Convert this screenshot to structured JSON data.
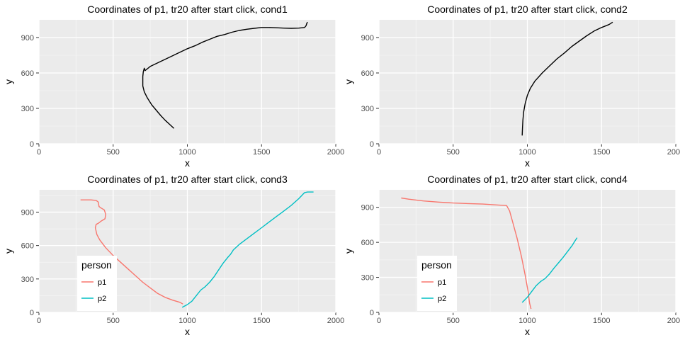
{
  "chart_data": [
    {
      "type": "line",
      "title": "Coordinates of p1, tr20 after start click, cond1",
      "xlabel": "x",
      "ylabel": "y",
      "xlim": [
        0,
        2000
      ],
      "ylim": [
        0,
        1050
      ],
      "xticks": [
        0,
        500,
        1000,
        1500,
        2000
      ],
      "yticks": [
        0,
        300,
        600,
        900
      ],
      "grid": true,
      "legend": null,
      "series": [
        {
          "color": "#000000",
          "x": [
            910,
            880,
            850,
            820,
            790,
            760,
            730,
            710,
            700,
            700,
            700,
            703,
            710,
            715,
            725,
            750,
            800,
            850,
            900,
            950,
            1000,
            1050,
            1100,
            1150,
            1200,
            1250,
            1300,
            1350,
            1400,
            1450,
            1500,
            1550,
            1600,
            1650,
            1700,
            1750,
            1790,
            1800,
            1805,
            1810
          ],
          "y": [
            130,
            165,
            200,
            240,
            285,
            330,
            390,
            440,
            490,
            530,
            570,
            610,
            640,
            620,
            630,
            655,
            685,
            715,
            745,
            775,
            805,
            830,
            860,
            885,
            910,
            925,
            945,
            960,
            970,
            978,
            985,
            985,
            983,
            980,
            978,
            980,
            985,
            1000,
            1020,
            1030
          ]
        }
      ]
    },
    {
      "type": "line",
      "title": "Coordinates of p1, tr20 after start click, cond2",
      "xlabel": "x",
      "ylabel": "y",
      "xlim": [
        0,
        2000
      ],
      "ylim": [
        0,
        1050
      ],
      "xticks": [
        0,
        500,
        1000,
        1500,
        2000
      ],
      "yticks": [
        0,
        300,
        600,
        900
      ],
      "grid": true,
      "legend": null,
      "series": [
        {
          "color": "#000000",
          "x": [
            965,
            967,
            970,
            975,
            985,
            1000,
            1020,
            1050,
            1100,
            1150,
            1200,
            1250,
            1300,
            1350,
            1400,
            1450,
            1500,
            1550,
            1575
          ],
          "y": [
            70,
            130,
            200,
            270,
            340,
            410,
            470,
            530,
            600,
            660,
            720,
            770,
            825,
            870,
            915,
            955,
            985,
            1010,
            1030
          ]
        }
      ]
    },
    {
      "type": "line",
      "title": "Coordinates of p1, tr20 after start click, cond3",
      "xlabel": "x",
      "ylabel": "y",
      "xlim": [
        0,
        2000
      ],
      "ylim": [
        0,
        1100
      ],
      "xticks": [
        0,
        500,
        1000,
        1500,
        2000
      ],
      "yticks": [
        0,
        300,
        600,
        900
      ],
      "grid": true,
      "legend": {
        "title": "person",
        "position": "bottom-left",
        "entries": [
          "p1",
          "p2"
        ]
      },
      "series": [
        {
          "name": "p1",
          "color": "#F8766D",
          "x": [
            280,
            350,
            385,
            400,
            405,
            415,
            440,
            450,
            445,
            420,
            400,
            385,
            380,
            390,
            410,
            450,
            500,
            550,
            600,
            650,
            700,
            750,
            800,
            850,
            900,
            950,
            970
          ],
          "y": [
            1010,
            1010,
            1005,
            990,
            950,
            940,
            920,
            880,
            840,
            820,
            800,
            790,
            760,
            700,
            650,
            580,
            510,
            450,
            390,
            330,
            270,
            220,
            170,
            135,
            110,
            90,
            75
          ]
        },
        {
          "name": "p2",
          "color": "#00BFC4",
          "x": [
            965,
            1000,
            1030,
            1060,
            1090,
            1120,
            1150,
            1180,
            1210,
            1240,
            1270,
            1290,
            1300,
            1310,
            1350,
            1400,
            1450,
            1500,
            1550,
            1600,
            1650,
            1700,
            1750,
            1790,
            1810,
            1850
          ],
          "y": [
            45,
            70,
            100,
            150,
            200,
            230,
            270,
            320,
            380,
            440,
            490,
            520,
            540,
            560,
            610,
            660,
            710,
            760,
            810,
            860,
            910,
            960,
            1020,
            1075,
            1080,
            1080
          ]
        }
      ]
    },
    {
      "type": "line",
      "title": "Coordinates of p1, tr20 after start click, cond4",
      "xlabel": "x",
      "ylabel": "y",
      "xlim": [
        0,
        2000
      ],
      "ylim": [
        0,
        1050
      ],
      "xticks": [
        0,
        500,
        1000,
        1500,
        2000
      ],
      "yticks": [
        0,
        300,
        600,
        900
      ],
      "grid": true,
      "legend": {
        "title": "person",
        "position": "bottom-left",
        "entries": [
          "p1",
          "p2"
        ]
      },
      "series": [
        {
          "name": "p1",
          "color": "#F8766D",
          "x": [
            150,
            200,
            300,
            400,
            500,
            600,
            700,
            800,
            860,
            880,
            900,
            930,
            960,
            985,
            1005,
            1015,
            1025
          ],
          "y": [
            980,
            970,
            955,
            945,
            937,
            932,
            928,
            920,
            915,
            870,
            780,
            640,
            480,
            320,
            180,
            80,
            30
          ]
        },
        {
          "name": "p2",
          "color": "#00BFC4",
          "x": [
            965,
            1000,
            1030,
            1060,
            1090,
            1120,
            1150,
            1180,
            1210,
            1240,
            1270,
            1300,
            1320,
            1335
          ],
          "y": [
            85,
            130,
            180,
            230,
            265,
            290,
            330,
            380,
            425,
            470,
            520,
            570,
            610,
            640
          ]
        }
      ]
    }
  ]
}
